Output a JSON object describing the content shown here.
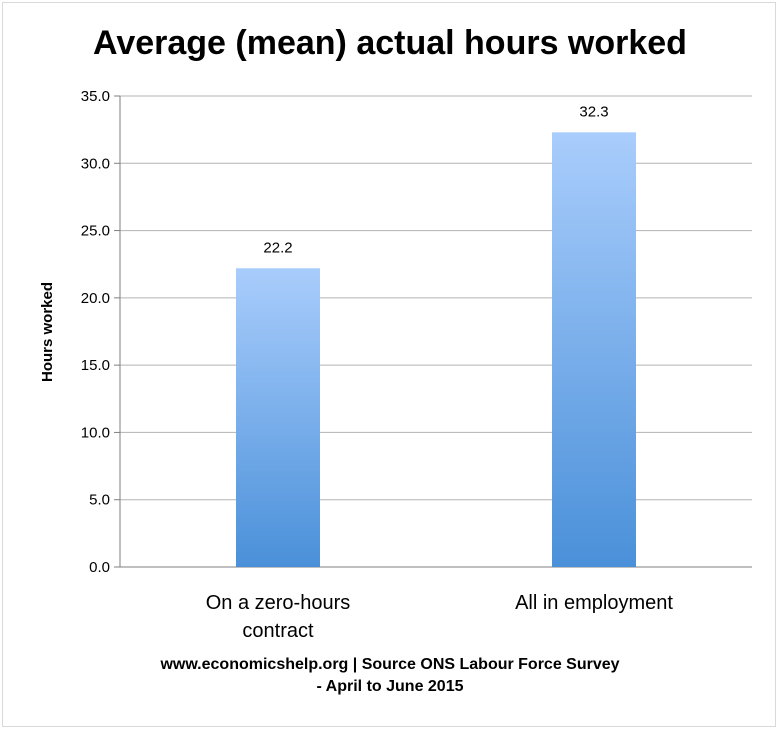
{
  "chart_data": {
    "type": "bar",
    "title": "Average (mean) actual hours worked",
    "ylabel": "Hours worked",
    "categories": [
      [
        "On a zero-hours",
        "contract"
      ],
      [
        "All in employment"
      ]
    ],
    "values": [
      22.2,
      32.3
    ],
    "data_labels": [
      "22.2",
      "32.3"
    ],
    "ylim": [
      0,
      35
    ],
    "yticks": [
      "0.0",
      "5.0",
      "10.0",
      "15.0",
      "20.0",
      "25.0",
      "30.0",
      "35.0"
    ],
    "ytick_values": [
      0,
      5,
      10,
      15,
      20,
      25,
      30,
      35
    ],
    "grid": true,
    "colors": {
      "bar_top": "#a9cdfc",
      "bar_bottom": "#4a90d9",
      "grid": "#b3b3b3",
      "axis": "#7f7f7f"
    }
  },
  "footer": {
    "line1": "www.economicshelp.org | Source ONS Labour Force Survey",
    "line2": "- April to June 2015"
  }
}
